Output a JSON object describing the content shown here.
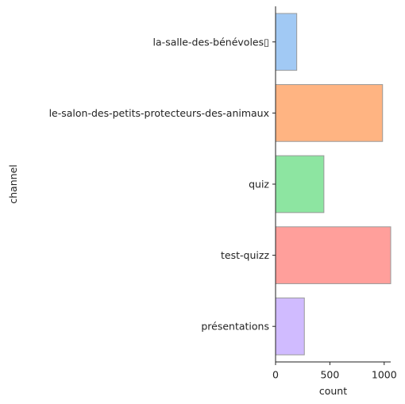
{
  "chart_data": {
    "type": "bar",
    "orientation": "horizontal",
    "categories": [
      "la-salle-des-bénévoles▯",
      "le-salon-des-petits-protecteurs-des-animaux",
      "quiz",
      "test-quizz",
      "présentations"
    ],
    "values": [
      195,
      985,
      445,
      1060,
      265
    ],
    "colors": [
      "#a1c9f4",
      "#ffb482",
      "#8de5a1",
      "#ff9f9b",
      "#d0bbff"
    ],
    "xlabel": "count",
    "ylabel": "channel",
    "xlim": [
      0,
      1060
    ],
    "xticks": [
      0,
      500,
      1000
    ],
    "grid": false,
    "legend": "none"
  }
}
